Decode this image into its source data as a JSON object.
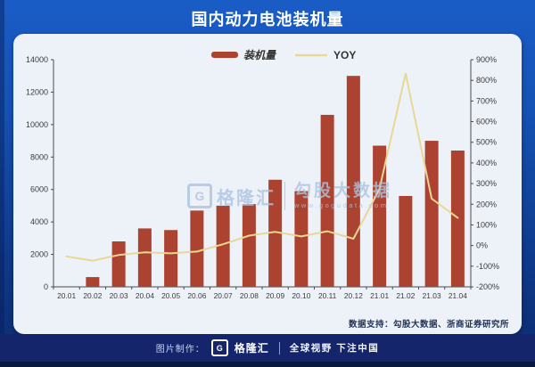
{
  "page": {
    "title": "国内动力电池装机量",
    "data_support": "数据支持：勾股大数据、浙商证券研究所",
    "watermark": {
      "g": "G",
      "brand": "格隆汇",
      "name": "勾股大数据",
      "url": "www.gogudata.com"
    },
    "footer": {
      "made_by_label": "图片制作：",
      "brand_g": "G",
      "brand_name": "格隆汇",
      "slogan": "全球视野 下注中国"
    }
  },
  "colors": {
    "bar": "#AC4330",
    "line": "#E9D795",
    "axis": "#4A4A4A",
    "axis_text": "#3B3B3B",
    "card_bg": "#EDF2F9"
  },
  "chart_data": {
    "type": "bar",
    "title": "国内动力电池装机量",
    "xlabel": "",
    "ylabel": "",
    "grid": false,
    "legend_position": "top",
    "categories": [
      "20.01",
      "20.02",
      "20.03",
      "20.04",
      "20.05",
      "20.06",
      "20.07",
      "20.08",
      "20.09",
      "20.10",
      "20.11",
      "20.12",
      "21.01",
      "21.02",
      "21.03",
      "21.04"
    ],
    "series": [
      {
        "name": "装机量",
        "chart_type": "bar",
        "axis": "left",
        "values": [
          0,
          600,
          2800,
          3600,
          3500,
          4700,
          5000,
          5100,
          6600,
          5900,
          10600,
          13000,
          8700,
          5600,
          9000,
          8400
        ]
      },
      {
        "name": "YOY",
        "chart_type": "line",
        "axis": "right",
        "values": [
          -53,
          -73,
          -46,
          -33,
          -38,
          -29,
          6,
          48,
          66,
          44,
          69,
          33,
          274,
          833,
          227,
          134
        ]
      }
    ],
    "left_axis": {
      "min": 0,
      "max": 14000,
      "step": 2000
    },
    "right_axis": {
      "min": -200,
      "max": 900,
      "step": 100,
      "suffix": "%"
    }
  }
}
